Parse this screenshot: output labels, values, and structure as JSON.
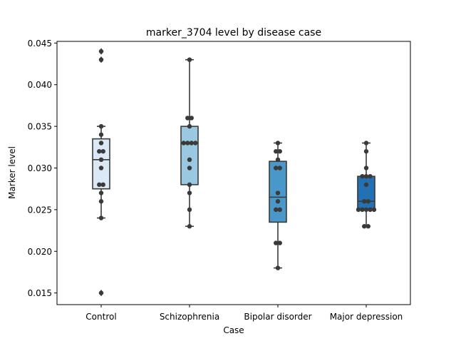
{
  "chart_data": {
    "type": "box",
    "title": "marker_3704 level by disease case",
    "xlabel": "Case",
    "ylabel": "Marker level",
    "ylim": [
      0.0136,
      0.0452
    ],
    "yticks": [
      0.015,
      0.02,
      0.025,
      0.03,
      0.035,
      0.04,
      0.045
    ],
    "ytick_labels": [
      "0.015",
      "0.020",
      "0.025",
      "0.030",
      "0.035",
      "0.040",
      "0.045"
    ],
    "grid": false,
    "legend": "none",
    "categories": [
      "Control",
      "Schizophrenia",
      "Bipolar disorder",
      "Major depression"
    ],
    "colors": [
      "#dbe9f6",
      "#9ac8e0",
      "#4a98c9",
      "#2271b5"
    ],
    "boxes": [
      {
        "q1": 0.0275,
        "median": 0.031,
        "q3": 0.0335,
        "whisker_low": 0.024,
        "whisker_high": 0.035,
        "outliers": [
          0.044,
          0.043,
          0.015
        ]
      },
      {
        "q1": 0.028,
        "median": 0.033,
        "q3": 0.035,
        "whisker_low": 0.023,
        "whisker_high": 0.043,
        "outliers": []
      },
      {
        "q1": 0.0235,
        "median": 0.0265,
        "q3": 0.0308,
        "whisker_low": 0.018,
        "whisker_high": 0.033,
        "outliers": []
      },
      {
        "q1": 0.025,
        "median": 0.026,
        "q3": 0.029,
        "whisker_low": 0.023,
        "whisker_high": 0.033,
        "outliers": []
      }
    ],
    "points": [
      [
        0.044,
        0.043,
        0.035,
        0.034,
        0.033,
        0.032,
        0.032,
        0.031,
        0.03,
        0.028,
        0.028,
        0.027,
        0.026,
        0.024,
        0.015
      ],
      [
        0.043,
        0.036,
        0.036,
        0.035,
        0.033,
        0.033,
        0.033,
        0.033,
        0.031,
        0.03,
        0.028,
        0.027,
        0.025,
        0.023
      ],
      [
        0.033,
        0.032,
        0.032,
        0.031,
        0.03,
        0.03,
        0.027,
        0.026,
        0.025,
        0.025,
        0.021,
        0.021,
        0.018
      ],
      [
        0.033,
        0.032,
        0.03,
        0.029,
        0.029,
        0.029,
        0.028,
        0.026,
        0.026,
        0.025,
        0.025,
        0.025,
        0.025,
        0.025,
        0.023,
        0.023
      ]
    ]
  }
}
